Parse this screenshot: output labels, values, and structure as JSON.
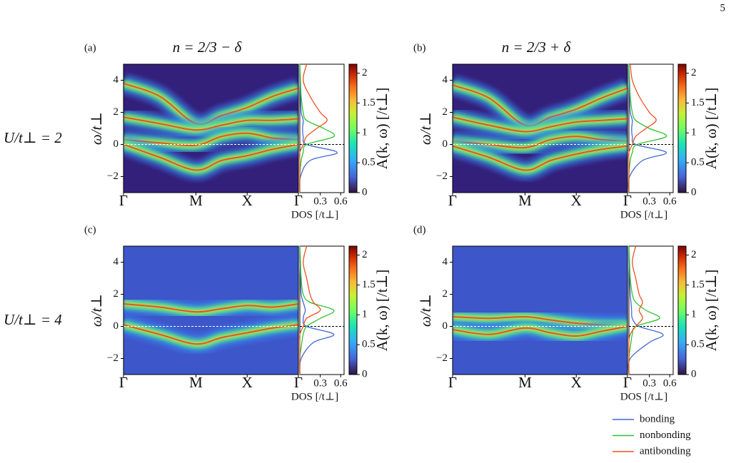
{
  "page_number": "5",
  "column_titles": [
    "n = 2/3 − δ",
    "n = 2/3 + δ"
  ],
  "row_labels": [
    "U/t⊥ = 2",
    "U/t⊥ = 4"
  ],
  "legend": [
    {
      "name": "bonding",
      "color": "#4169d6"
    },
    {
      "name": "nonbonding",
      "color": "#2fc42f"
    },
    {
      "name": "antibonding",
      "color": "#f0501e"
    }
  ],
  "chart_data": [
    {
      "type": "spectral",
      "label": "(a)",
      "ylabel": "ω/t⊥",
      "background": "#33207a",
      "ylim": [
        -3,
        5
      ],
      "yticks": [
        {
          "value": -2,
          "label": "−2"
        },
        0,
        2,
        4
      ],
      "xlim": [
        0,
        3.414
      ],
      "xticks": [
        {
          "value": 0,
          "label": "Γ"
        },
        {
          "value": 1.414,
          "label": "M"
        },
        {
          "value": 2.414,
          "label": "X"
        },
        {
          "value": 3.414,
          "label": "Γ"
        }
      ],
      "k": [
        0,
        0.707,
        1.414,
        1.914,
        2.414,
        2.914,
        3.414
      ],
      "bands": [
        [
          3.8,
          3.0,
          1.3,
          1.8,
          2.3,
          3.0,
          3.5
        ],
        [
          1.7,
          1.3,
          0.9,
          1.2,
          1.5,
          1.5,
          1.6
        ],
        [
          0.3,
          0.1,
          -0.05,
          0.5,
          0.7,
          0.4,
          0.3
        ],
        [
          0,
          -0.8,
          -1.6,
          -1.0,
          -0.7,
          -0.3,
          0
        ]
      ],
      "dos_xlabel": "DOS [/t⊥]",
      "dos_xlim": [
        0,
        0.65
      ],
      "dos_xticks": [
        0.3,
        0.6
      ],
      "omega": [
        -3,
        -2,
        -1,
        -0.5,
        0,
        0.5,
        1,
        1.5,
        2,
        3,
        4,
        5
      ],
      "dos": [
        [
          0,
          0.01,
          0.15,
          0.55,
          0.1,
          0.05,
          0.04,
          0.05,
          0.02,
          0.01,
          0,
          0
        ],
        [
          0,
          0,
          0.02,
          0.05,
          0.1,
          0.5,
          0.35,
          0.1,
          0.05,
          0.02,
          0.01,
          0
        ],
        [
          0,
          0,
          0,
          0,
          0.05,
          0.1,
          0.25,
          0.4,
          0.3,
          0.15,
          0.05,
          0.1
        ]
      ],
      "colorbar_label": "A(k, ω)  [/t⊥]",
      "clim": [
        0,
        2.15
      ],
      "cticks": [
        0,
        0.5,
        1,
        1.5,
        2
      ]
    },
    {
      "type": "spectral",
      "label": "(b)",
      "ylabel": "ω/t⊥",
      "background": "#33207a",
      "ylim": [
        -3,
        5
      ],
      "yticks": [
        {
          "value": -2,
          "label": "−2"
        },
        0,
        2,
        4
      ],
      "xlim": [
        0,
        3.414
      ],
      "xticks": [
        {
          "value": 0,
          "label": "Γ"
        },
        {
          "value": 1.414,
          "label": "M"
        },
        {
          "value": 2.414,
          "label": "X"
        },
        {
          "value": 3.414,
          "label": "Γ"
        }
      ],
      "k": [
        0,
        0.707,
        1.414,
        1.914,
        2.414,
        2.914,
        3.414
      ],
      "bands": [
        [
          3.7,
          2.9,
          1.2,
          1.7,
          2.2,
          2.9,
          3.5
        ],
        [
          1.7,
          1.2,
          0.8,
          1.1,
          1.4,
          1.5,
          1.6
        ],
        [
          0.2,
          0,
          -0.2,
          0.3,
          0.5,
          0.3,
          0.2
        ],
        [
          -0.1,
          -0.8,
          -1.6,
          -1.0,
          -0.6,
          -0.3,
          -0.1
        ]
      ],
      "dos_xlabel": "DOS [/t⊥]",
      "dos_xlim": [
        0,
        0.65
      ],
      "dos_xticks": [
        0.3,
        0.6
      ],
      "omega": [
        -3,
        -2,
        -1,
        -0.5,
        0,
        0.5,
        1,
        1.5,
        2,
        3,
        4,
        5
      ],
      "dos": [
        [
          0,
          0.01,
          0.2,
          0.55,
          0.1,
          0.05,
          0.04,
          0.05,
          0.02,
          0.01,
          0,
          0
        ],
        [
          0,
          0,
          0.02,
          0.05,
          0.12,
          0.55,
          0.3,
          0.1,
          0.05,
          0.02,
          0.01,
          0
        ],
        [
          0,
          0,
          0,
          0,
          0.05,
          0.1,
          0.25,
          0.4,
          0.3,
          0.15,
          0.05,
          0.02
        ]
      ],
      "colorbar_label": "A(k, ω)  [/t⊥]",
      "clim": [
        0,
        2.15
      ],
      "cticks": [
        0,
        0.5,
        1,
        1.5,
        2
      ]
    },
    {
      "type": "spectral",
      "label": "(c)",
      "ylabel": "ω/t⊥",
      "background": "#3d56c9",
      "ylim": [
        -3,
        5
      ],
      "yticks": [
        {
          "value": -2,
          "label": "−2"
        },
        0,
        2,
        4
      ],
      "xlim": [
        0,
        3.414
      ],
      "xticks": [
        {
          "value": 0,
          "label": "Γ"
        },
        {
          "value": 1.414,
          "label": "M"
        },
        {
          "value": 2.414,
          "label": "X"
        },
        {
          "value": 3.414,
          "label": "Γ"
        }
      ],
      "k": [
        0,
        0.707,
        1.414,
        1.914,
        2.414,
        2.914,
        3.414
      ],
      "bands": [
        [
          1.4,
          1.2,
          0.9,
          1.1,
          1.3,
          1.2,
          1.4
        ],
        [
          0.1,
          -0.5,
          -1.1,
          -0.7,
          -0.4,
          -0.1,
          0.1
        ]
      ],
      "dos_xlabel": "DOS [/t⊥]",
      "dos_xlim": [
        0,
        0.65
      ],
      "dos_xticks": [
        0.3,
        0.6
      ],
      "omega": [
        -3,
        -2,
        -1,
        -0.5,
        0,
        0.5,
        1,
        1.5,
        2,
        3,
        4,
        5
      ],
      "dos": [
        [
          0,
          0.02,
          0.2,
          0.5,
          0.1,
          0.05,
          0.08,
          0.05,
          0.02,
          0.01,
          0,
          0
        ],
        [
          0,
          0,
          0.03,
          0.05,
          0.1,
          0.3,
          0.5,
          0.15,
          0.05,
          0.02,
          0.01,
          0
        ],
        [
          0,
          0,
          0,
          0,
          0.05,
          0.1,
          0.3,
          0.2,
          0.15,
          0.1,
          0.05,
          0.1
        ]
      ],
      "colorbar_label": "A(k, ω)  [/t⊥]",
      "clim": [
        0,
        2.15
      ],
      "cticks": [
        0,
        0.5,
        1,
        1.5,
        2
      ]
    },
    {
      "type": "spectral",
      "label": "(d)",
      "ylabel": "ω/t⊥",
      "background": "#3d56c9",
      "ylim": [
        -3,
        5
      ],
      "yticks": [
        {
          "value": -2,
          "label": "−2"
        },
        0,
        2,
        4
      ],
      "xlim": [
        0,
        3.414
      ],
      "xticks": [
        {
          "value": 0,
          "label": "Γ"
        },
        {
          "value": 1.414,
          "label": "M"
        },
        {
          "value": 2.414,
          "label": "X"
        },
        {
          "value": 3.414,
          "label": "Γ"
        }
      ],
      "k": [
        0,
        0.707,
        1.414,
        1.914,
        2.414,
        2.914,
        3.414
      ],
      "bands": [
        [
          0.6,
          0.5,
          0.6,
          0.4,
          0.2,
          0.1,
          0.1
        ],
        [
          -0.2,
          -0.5,
          -0.1,
          -0.4,
          -0.6,
          -0.3,
          0
        ]
      ],
      "dos_xlabel": "DOS [/t⊥]",
      "dos_xlim": [
        0,
        0.65
      ],
      "dos_xticks": [
        0.3,
        0.6
      ],
      "omega": [
        -3,
        -2,
        -1,
        -0.5,
        0,
        0.5,
        1,
        1.5,
        2,
        3,
        4,
        5
      ],
      "dos": [
        [
          0,
          0.02,
          0.3,
          0.5,
          0.15,
          0.05,
          0.04,
          0.03,
          0.02,
          0.01,
          0,
          0
        ],
        [
          0,
          0,
          0.03,
          0.05,
          0.1,
          0.45,
          0.25,
          0.1,
          0.05,
          0.02,
          0.01,
          0
        ],
        [
          0,
          0,
          0,
          0.02,
          0.1,
          0.2,
          0.15,
          0.2,
          0.15,
          0.1,
          0.05,
          0.1
        ]
      ],
      "colorbar_label": "A(k, ω)  [/t⊥]",
      "clim": [
        0,
        2.15
      ],
      "cticks": [
        0,
        0.5,
        1,
        1.5,
        2
      ]
    }
  ]
}
